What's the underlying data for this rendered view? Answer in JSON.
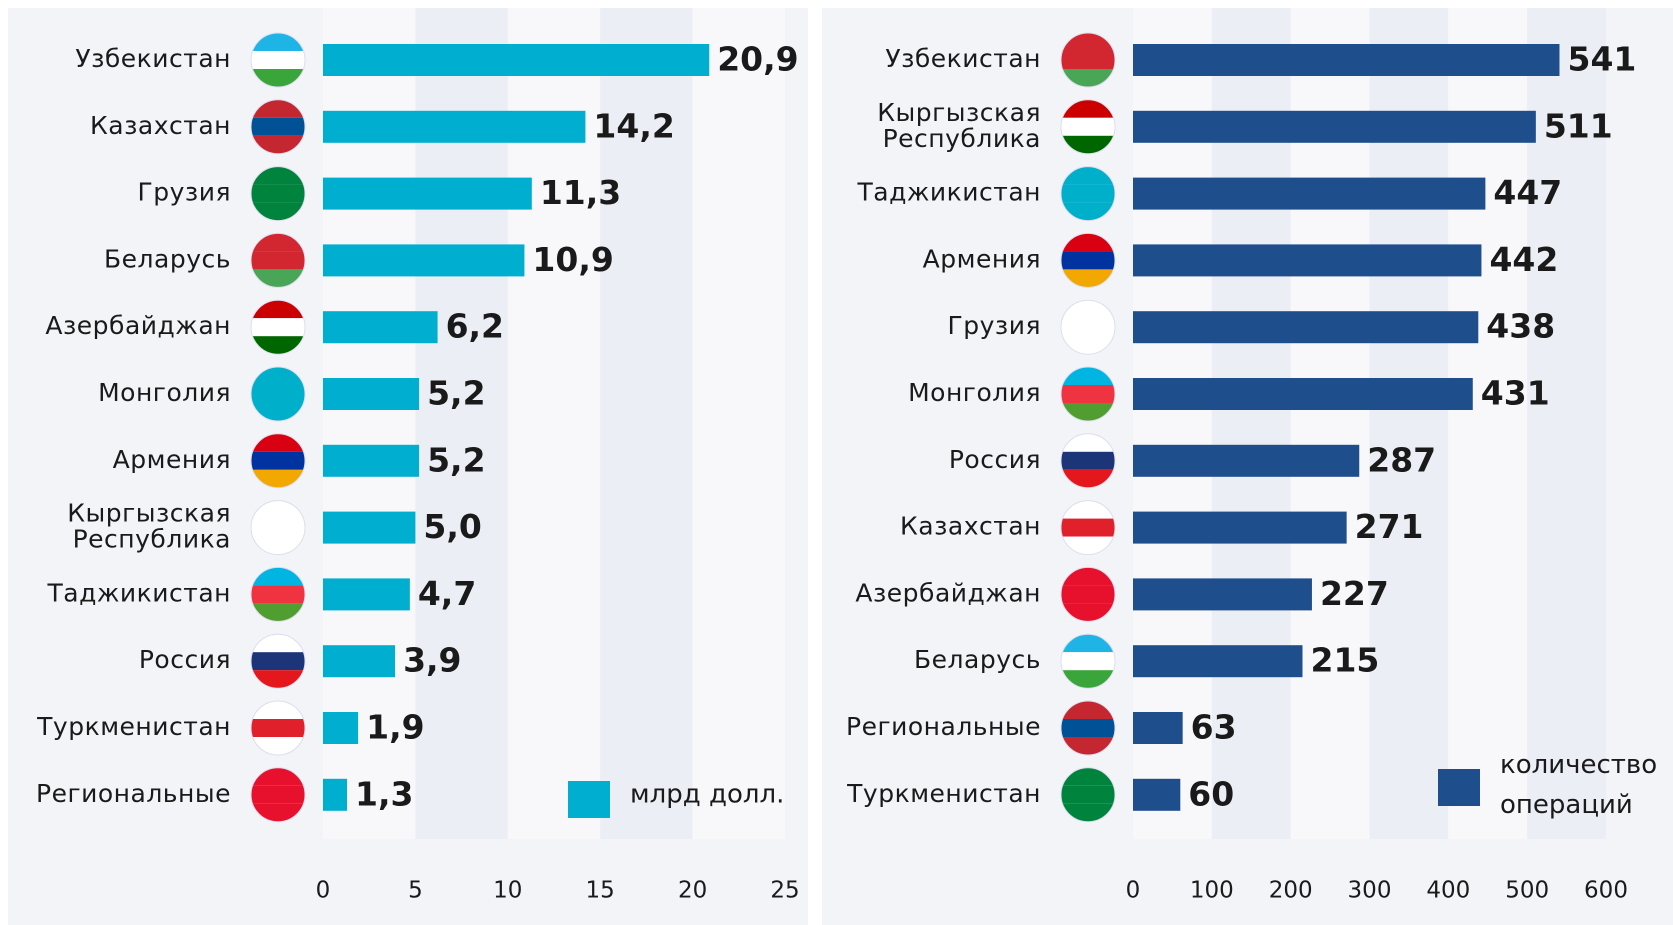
{
  "chart_data": [
    {
      "type": "bar",
      "orientation": "horizontal",
      "categories": [
        "Узбекистан",
        "Казахстан",
        "Грузия",
        "Беларусь",
        "Азербайджан",
        "Монголия",
        "Армения",
        "Кыргызская Республика",
        "Таджикистан",
        "Россия",
        "Туркменистан",
        "Региональные"
      ],
      "values": [
        20.9,
        14.2,
        11.3,
        10.9,
        6.2,
        5.2,
        5.2,
        5.0,
        4.7,
        3.9,
        1.9,
        1.3
      ],
      "value_labels": [
        "20,9",
        "14,2",
        "11,3",
        "10,9",
        "6,2",
        "5,2",
        "5,2",
        "5,0",
        "4,7",
        "3,9",
        "1,9",
        "1,3"
      ],
      "color": "#00aed0",
      "legend": "млрд долл.",
      "xlim": [
        0,
        25
      ],
      "xticks": [
        0,
        5,
        10,
        15,
        20,
        25
      ]
    },
    {
      "type": "bar",
      "orientation": "horizontal",
      "categories": [
        "Узбекистан",
        "Кыргызская Республика",
        "Таджикистан",
        "Армения",
        "Грузия",
        "Монголия",
        "Россия",
        "Казахстан",
        "Азербайджан",
        "Беларусь",
        "Региональные",
        "Туркменистан"
      ],
      "values": [
        541,
        511,
        447,
        442,
        438,
        431,
        287,
        271,
        227,
        215,
        63,
        60
      ],
      "color": "#1f4e8c",
      "legend": "количество операций",
      "xlim": [
        0,
        600
      ],
      "xticks": [
        0,
        100,
        200,
        300,
        400,
        500,
        600
      ]
    }
  ]
}
